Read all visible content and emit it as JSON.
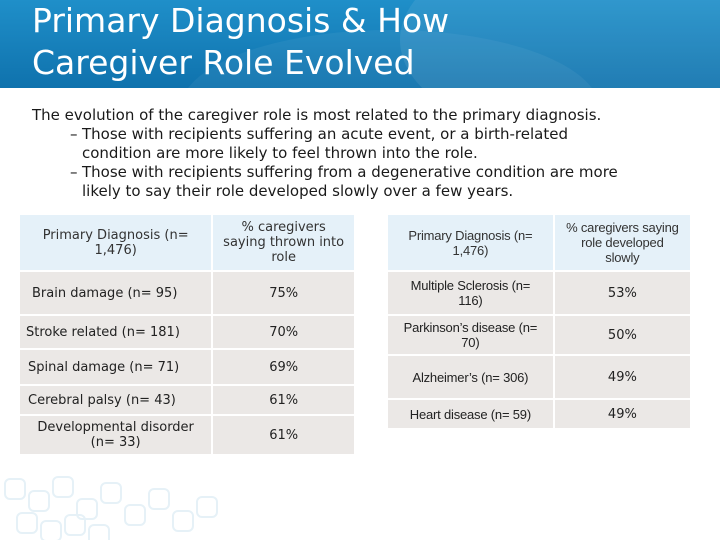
{
  "title": {
    "line1": "Primary Diagnosis & How",
    "line2": "Caregiver Role Evolved"
  },
  "intro": {
    "lead": "The evolution of the caregiver role is most related to the primary diagnosis.",
    "bullets": [
      {
        "dash": "–",
        "line1": "Those with recipients suffering an acute event, or a birth-related",
        "line2": "condition are more likely to feel thrown into the role."
      },
      {
        "dash": "–",
        "line1": "Those with recipients suffering from a degenerative condition are more",
        "line2": "likely to say their role developed slowly over a few years."
      }
    ]
  },
  "left_table": {
    "headers": [
      "Primary Diagnosis (n= 1,476)",
      "% caregivers saying thrown into role"
    ],
    "rows": [
      {
        "diagnosis": "Brain damage (n= 95)",
        "value": "75%"
      },
      {
        "diagnosis": "Stroke related (n= 181)",
        "value": "70%"
      },
      {
        "diagnosis": "Spinal damage (n= 71)",
        "value": "69%"
      },
      {
        "diagnosis": "Cerebral palsy (n= 43)",
        "value": "61%"
      },
      {
        "diagnosis": "Developmental disorder (n= 33)",
        "value": "61%"
      }
    ]
  },
  "right_table": {
    "headers": [
      "Primary Diagnosis (n= 1,476)",
      "% caregivers saying role developed slowly"
    ],
    "rows": [
      {
        "diagnosis": "Multiple Sclerosis (n= 116)",
        "value": "53%"
      },
      {
        "diagnosis": "Parkinson’s disease (n= 70)",
        "value": "50%"
      },
      {
        "diagnosis": "Alzheimer’s (n= 306)",
        "value": "49%"
      },
      {
        "diagnosis": "Heart disease (n= 59)",
        "value": "49%"
      }
    ]
  }
}
